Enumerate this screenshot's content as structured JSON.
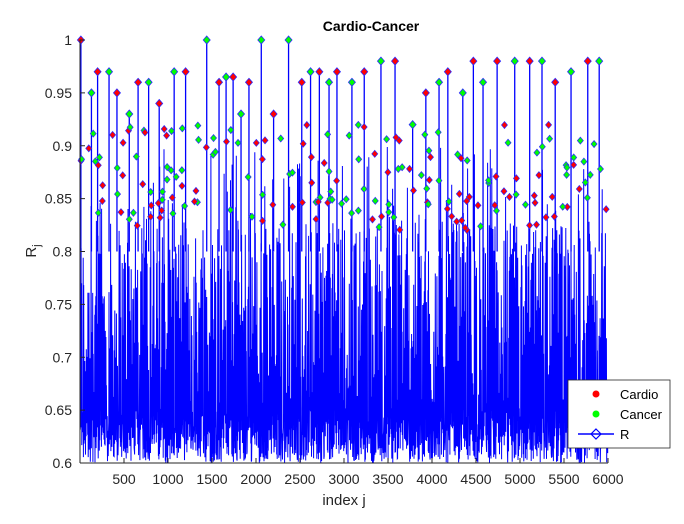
{
  "chart_data": {
    "type": "line",
    "title": "Cardio-Cancer",
    "xlabel": "index j",
    "ylabel": "R",
    "ylabel_subscript": "j",
    "xlim": [
      0,
      6000
    ],
    "ylim": [
      0.6,
      1.0
    ],
    "xticks": [
      500,
      1000,
      1500,
      2000,
      2500,
      3000,
      3500,
      4000,
      4500,
      5000,
      5500,
      6000
    ],
    "yticks": [
      0.6,
      0.65,
      0.7,
      0.75,
      0.8,
      0.85,
      0.9,
      0.95,
      1
    ],
    "ytick_labels": [
      "0.6",
      "0.65",
      "0.7",
      "0.75",
      "0.8",
      "0.85",
      "0.9",
      "0.95",
      "1"
    ],
    "grid": false,
    "legend_position": "bottom-right",
    "series": [
      {
        "name": "Cardio",
        "color": "#ff0000",
        "marker": "dot"
      },
      {
        "name": "Cancer",
        "color": "#00ff00",
        "marker": "dot"
      },
      {
        "name": "R",
        "color": "#0000ff",
        "marker": "diamond",
        "line": true
      }
    ],
    "peaks": {
      "x": [
        10,
        130,
        200,
        330,
        420,
        560,
        660,
        780,
        900,
        1070,
        1200,
        1440,
        1580,
        1660,
        1740,
        1830,
        1920,
        2060,
        2200,
        2370,
        2520,
        2620,
        2720,
        2830,
        2920,
        3090,
        3230,
        3420,
        3580,
        3780,
        3930,
        4080,
        4180,
        4350,
        4470,
        4580,
        4740,
        4940,
        5110,
        5250,
        5400,
        5580,
        5770,
        5900
      ],
      "y": [
        1.0,
        0.95,
        0.97,
        0.97,
        0.95,
        0.93,
        0.96,
        0.96,
        0.94,
        0.97,
        0.97,
        1.0,
        0.96,
        0.965,
        0.965,
        0.93,
        0.96,
        1.0,
        0.93,
        1.0,
        0.96,
        0.97,
        0.97,
        0.96,
        0.97,
        0.96,
        0.97,
        0.98,
        0.98,
        0.92,
        0.95,
        0.96,
        0.97,
        0.95,
        0.98,
        0.96,
        0.98,
        0.98,
        0.98,
        0.98,
        0.96,
        0.97,
        0.98,
        0.98
      ]
    },
    "baseline_range": [
      0.6,
      0.83
    ]
  }
}
